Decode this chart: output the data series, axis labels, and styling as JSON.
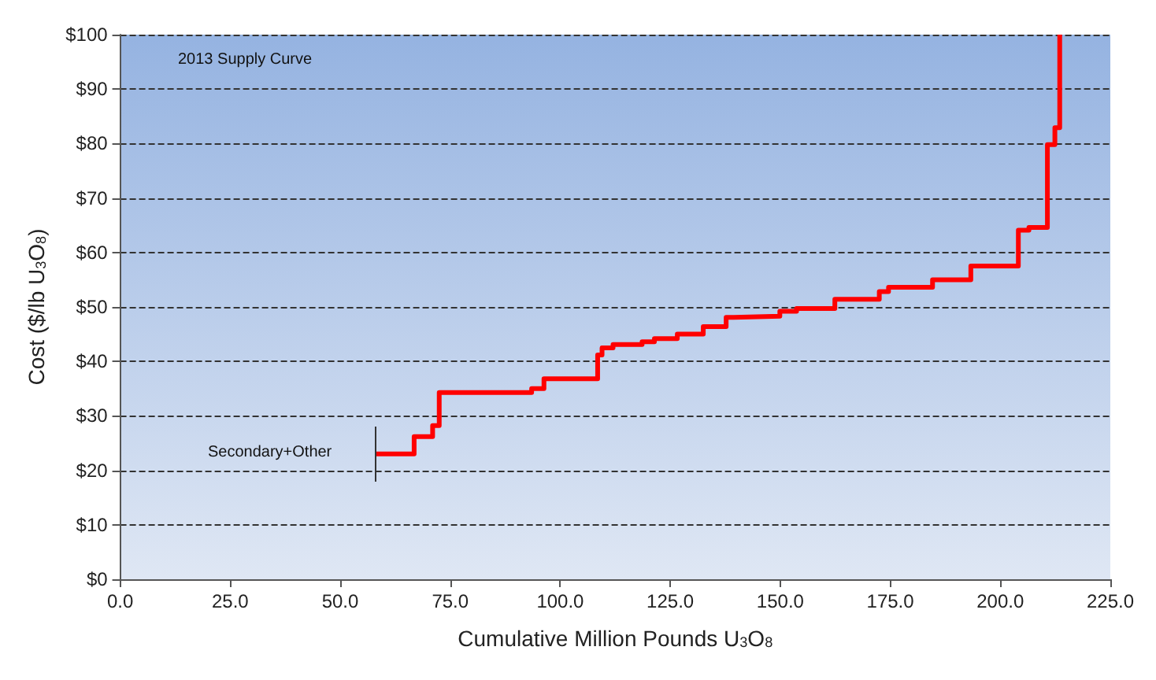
{
  "chart_data": {
    "type": "step",
    "title": "2013 Supply Curve",
    "xlabel": "Cumulative Million Pounds U$_{3}$O$_{8}$",
    "ylabel": "Cost ($/lb U$_{3}$O$_{8}$)",
    "x": [
      58.1,
      66.8,
      71,
      72.5,
      93.5,
      96.3,
      108.5,
      109.5,
      112,
      118.6,
      121.4,
      126.6,
      132.5,
      137.7,
      139.4,
      149.9,
      153.7,
      162.4,
      165.5,
      172.5,
      174.6,
      184.6,
      193.3,
      204.1,
      206.5,
      210.7,
      212.4,
      213.5
    ],
    "series": [
      {
        "color": "#ff0000",
        "values": [
          23,
          26.2,
          28.2,
          34.3,
          35,
          36.8,
          41.2,
          42.5,
          43.1,
          43.6,
          44.2,
          45,
          46.4,
          48.1,
          48.3,
          49.2,
          49.7,
          51.4,
          51.4,
          52.8,
          53.6,
          55,
          57.5,
          64.1,
          64.6,
          79.8,
          82.9,
          100
        ]
      }
    ],
    "xlim": [
      0,
      225
    ],
    "ylim": [
      0,
      100
    ],
    "xticks": [
      {
        "value": 0,
        "label": "0.0"
      },
      {
        "value": 25,
        "label": "25.0"
      },
      {
        "value": 50,
        "label": "50.0"
      },
      {
        "value": 75,
        "label": "75.0"
      },
      {
        "value": 100,
        "label": "100.0"
      },
      {
        "value": 125,
        "label": "125.0"
      },
      {
        "value": 150,
        "label": "150.0"
      },
      {
        "value": 175,
        "label": "175.0"
      },
      {
        "value": 200,
        "label": "200.0"
      },
      {
        "value": 225,
        "label": "225.0"
      }
    ],
    "yticks": [
      {
        "value": 0,
        "label": "$0"
      },
      {
        "value": 10,
        "label": "$10"
      },
      {
        "value": 20,
        "label": "$20"
      },
      {
        "value": 30,
        "label": "$30"
      },
      {
        "value": 40,
        "label": "$40"
      },
      {
        "value": 50,
        "label": "$50"
      },
      {
        "value": 60,
        "label": "$60"
      },
      {
        "value": 70,
        "label": "$70"
      },
      {
        "value": 80,
        "label": "$80"
      },
      {
        "value": 90,
        "label": "$90"
      },
      {
        "value": 100,
        "label": "$100"
      }
    ],
    "annotations": [
      "Secondary+Other"
    ],
    "grid": "y",
    "marker": "none",
    "line_style": "solid"
  }
}
